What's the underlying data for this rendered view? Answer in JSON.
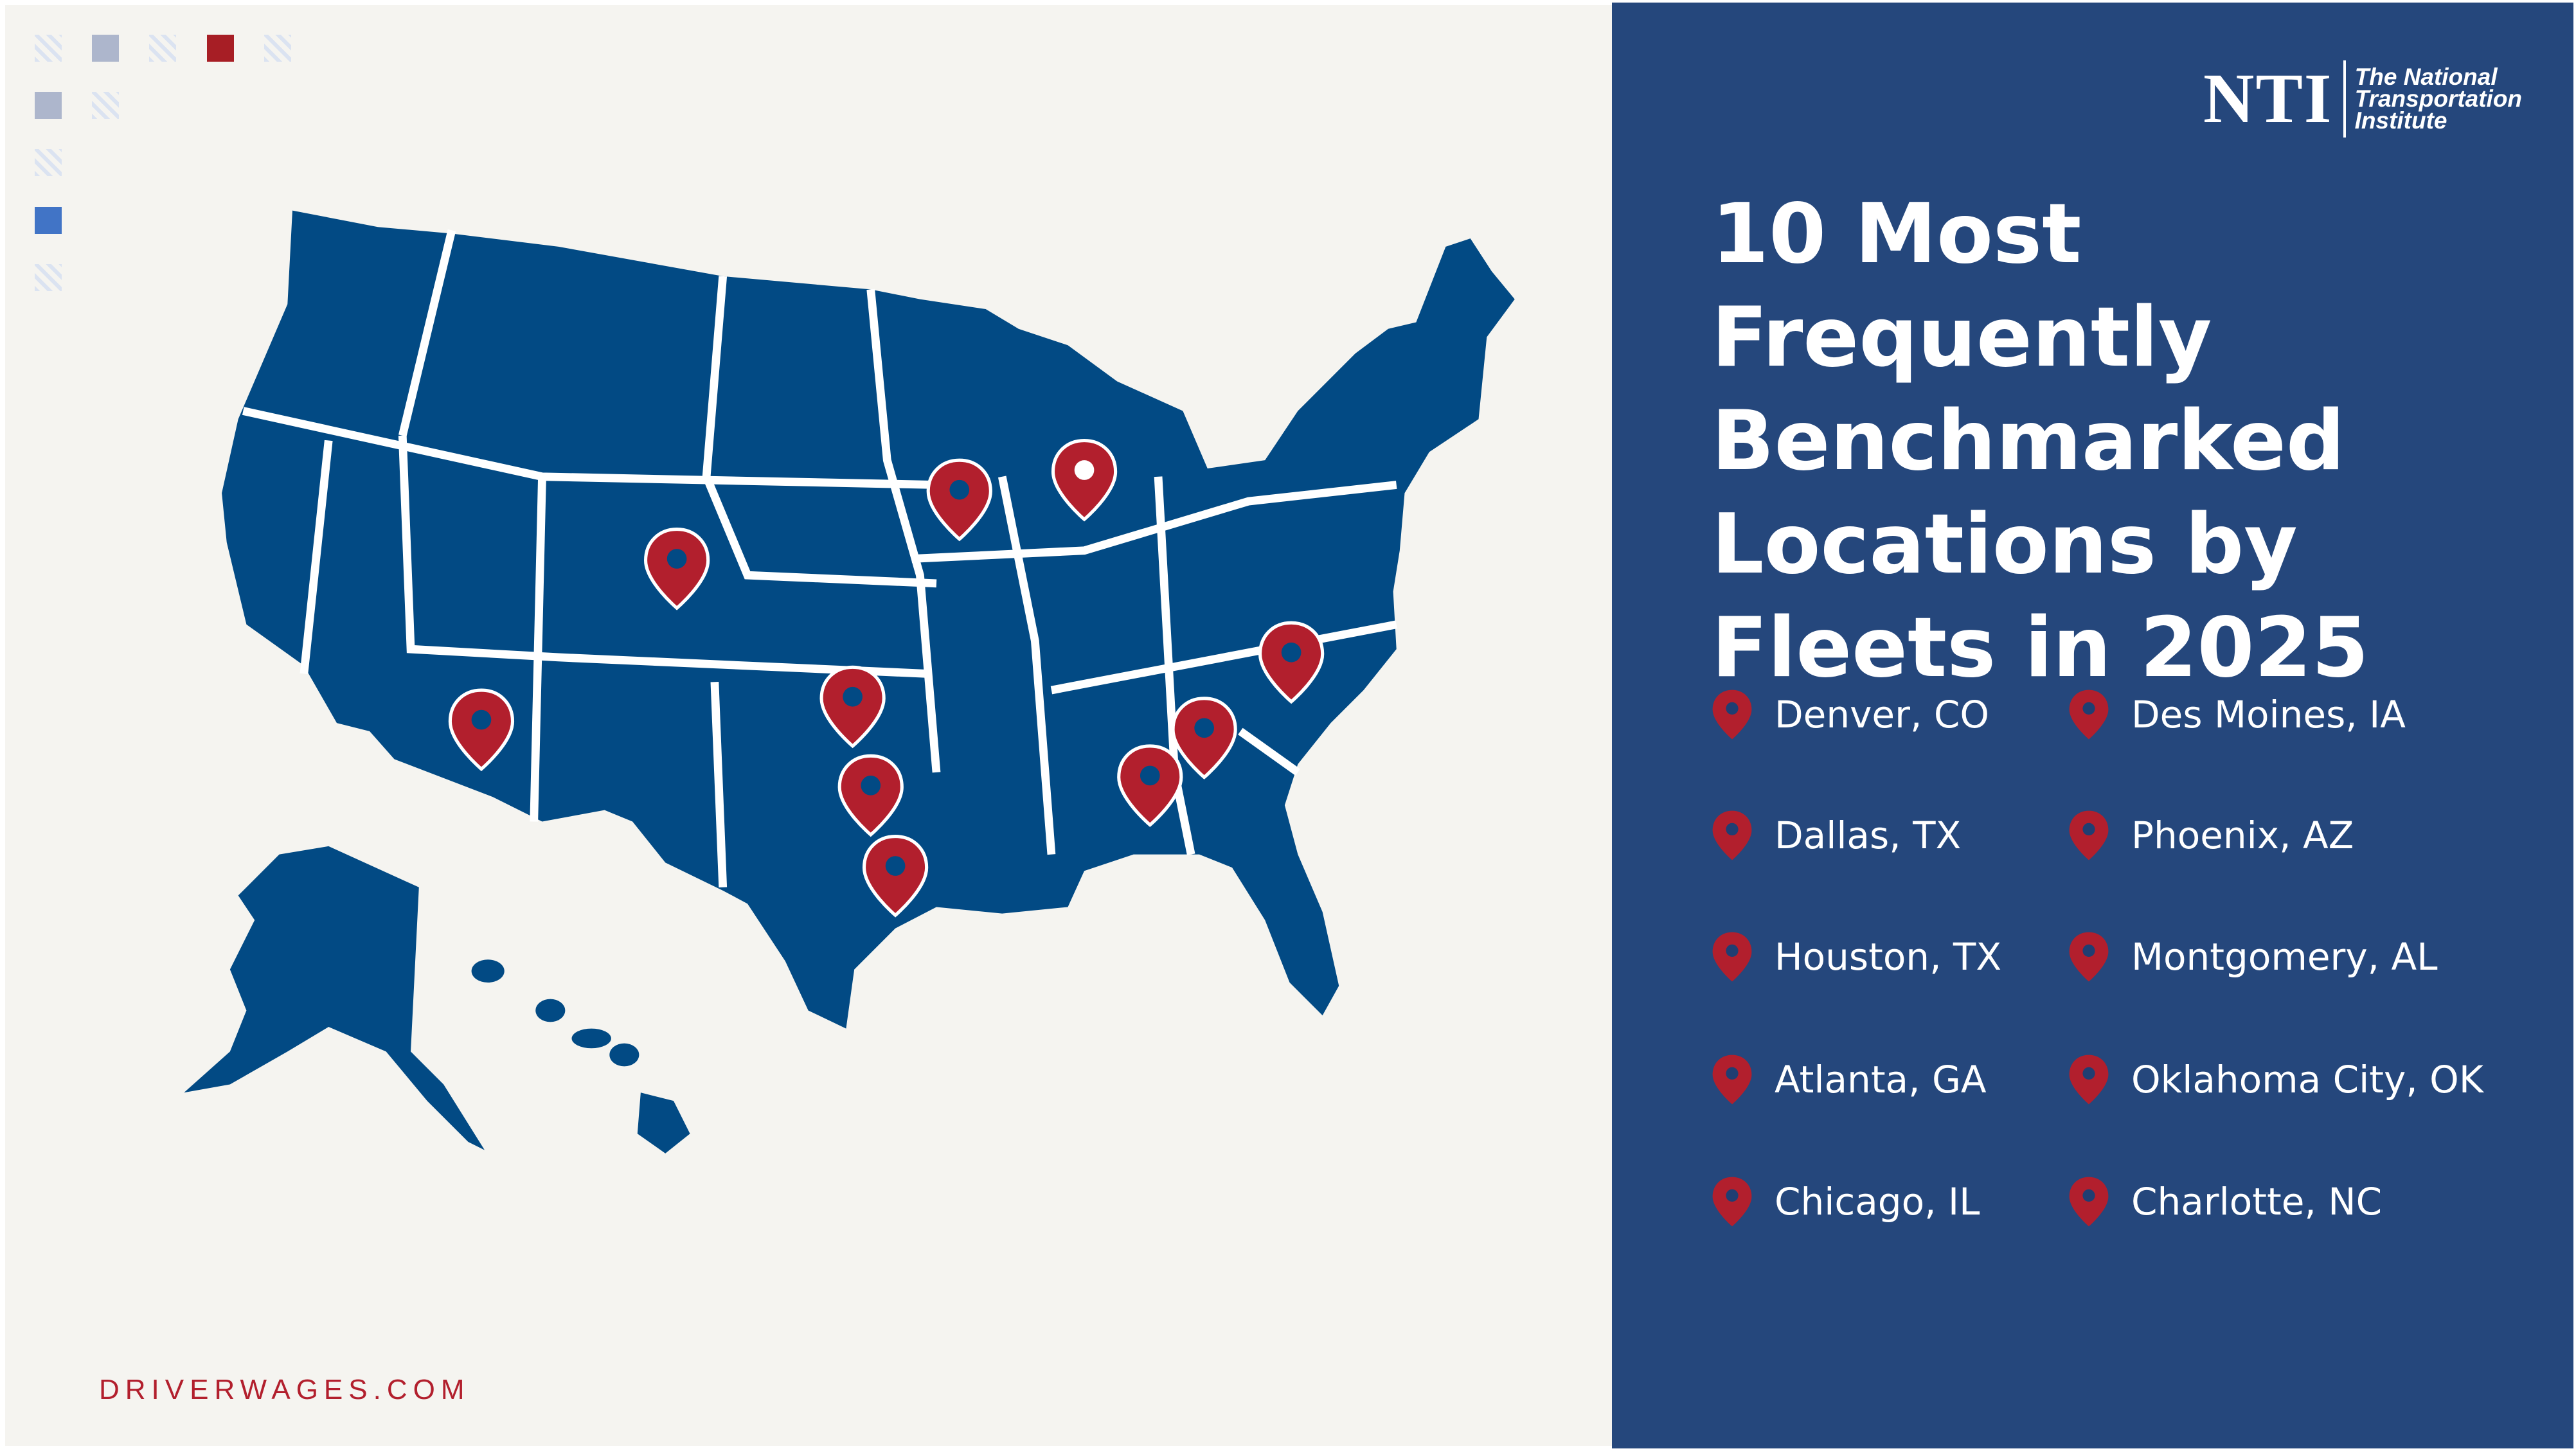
{
  "brand": {
    "logo_letters": "NTI",
    "institute_lines": [
      "The National",
      "Transportation",
      "Institute"
    ]
  },
  "title": [
    "10 Most Frequently",
    "Benchmarked",
    "Locations by",
    "Fleets in 2025"
  ],
  "locations": [
    {
      "label": "Denver, CO"
    },
    {
      "label": "Des Moines, IA"
    },
    {
      "label": "Dallas, TX"
    },
    {
      "label": "Phoenix, AZ"
    },
    {
      "label": "Houston, TX"
    },
    {
      "label": "Montgomery, AL"
    },
    {
      "label": "Atlanta, GA"
    },
    {
      "label": "Oklahoma City, OK"
    },
    {
      "label": "Chicago, IL"
    },
    {
      "label": "Charlotte, NC"
    }
  ],
  "footer": "DRIVERWAGES.COM",
  "colors": {
    "map": "#024a84",
    "pin": "#b21f2d",
    "panel": "#25477c",
    "background": "#f5f4f0"
  }
}
